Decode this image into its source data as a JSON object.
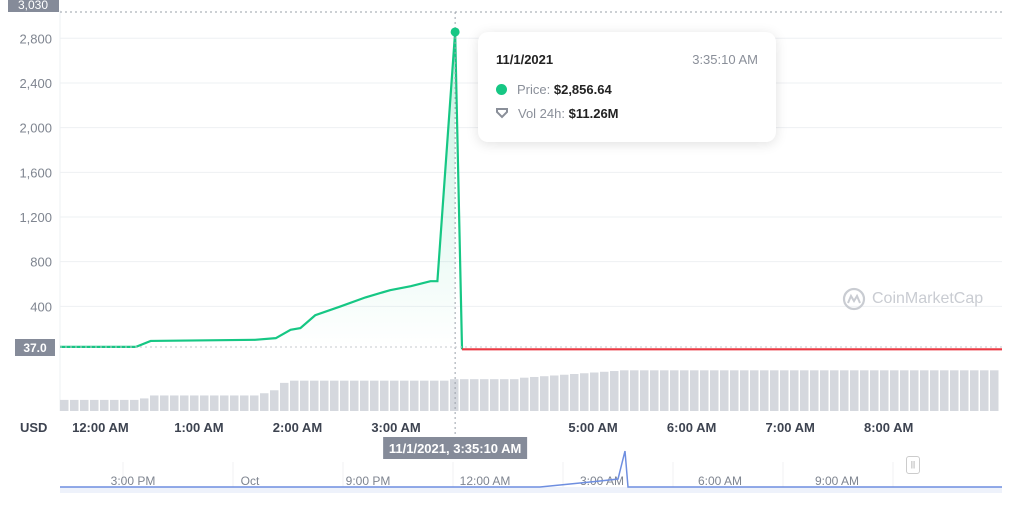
{
  "chart_data": {
    "type": "line",
    "currency_label": "USD",
    "y_ticks": [
      "2,800",
      "2,400",
      "2,000",
      "1,600",
      "1,200",
      "800",
      "400"
    ],
    "y_tick_values": [
      2800,
      2400,
      2000,
      1600,
      1200,
      800,
      400
    ],
    "ylim": [
      0,
      3030
    ],
    "top_label": "3,030",
    "current_label": "37.0",
    "x_ticks": [
      {
        "label": "12:00 AM",
        "h": 0
      },
      {
        "label": "1:00 AM",
        "h": 1
      },
      {
        "label": "2:00 AM",
        "h": 2
      },
      {
        "label": "3:00 AM",
        "h": 3
      },
      {
        "label": "5:00 AM",
        "h": 5
      },
      {
        "label": "6:00 AM",
        "h": 6
      },
      {
        "label": "7:00 AM",
        "h": 7
      },
      {
        "label": "8:00 AM",
        "h": 8
      }
    ],
    "xlim_hours": [
      -0.41,
      9.15
    ],
    "price_before": [
      [
        -0.41,
        37
      ],
      [
        0.36,
        37
      ],
      [
        0.51,
        90
      ],
      [
        1.57,
        100
      ],
      [
        1.78,
        115
      ],
      [
        1.93,
        190
      ],
      [
        2.03,
        205
      ],
      [
        2.18,
        320
      ],
      [
        2.44,
        400
      ],
      [
        2.69,
        480
      ],
      [
        2.94,
        545
      ],
      [
        3.15,
        580
      ],
      [
        3.35,
        625
      ],
      [
        3.42,
        625
      ],
      [
        3.6,
        2856.64
      ]
    ],
    "price_after": [
      [
        3.6,
        2856.64
      ],
      [
        3.67,
        15
      ],
      [
        9.15,
        15
      ]
    ],
    "volume_relative": [
      15,
      15,
      15,
      15,
      15,
      15,
      15,
      15,
      17,
      21,
      21,
      21,
      21,
      21,
      21,
      21,
      21,
      21,
      21,
      21,
      24,
      28,
      38,
      41,
      41,
      41,
      41,
      41,
      41,
      41,
      41,
      41,
      41,
      41,
      41,
      41,
      41,
      41,
      41,
      43,
      43,
      43,
      43,
      43,
      43,
      43,
      45,
      46,
      47,
      48,
      49,
      50,
      51,
      52,
      53,
      54,
      55,
      55,
      55,
      55,
      55,
      55,
      55,
      55,
      55,
      55,
      55,
      55,
      55,
      55,
      55,
      55,
      55,
      55,
      55,
      55,
      55,
      55,
      55,
      55,
      55,
      55,
      55,
      55,
      55,
      55,
      55,
      55,
      55,
      55,
      55,
      55,
      55,
      55
    ],
    "crosshair_label": "11/1/2021, 3:35:10 AM",
    "crosshair_hour": 3.6,
    "navigator": {
      "ticks": [
        "3:00 PM",
        "Oct",
        "9:00 PM",
        "12:00 AM",
        "3:00 AM",
        "6:00 AM",
        "9:00 AM"
      ]
    },
    "colors": {
      "up": "#16c784",
      "down": "#ea3943",
      "volume": "#d5d8de",
      "navigator": "#6e8ee0"
    }
  },
  "tooltip": {
    "date": "11/1/2021",
    "time": "3:35:10 AM",
    "price_label": "Price:",
    "price_value": "$2,856.64",
    "vol_label": "Vol 24h:",
    "vol_value": "$11.26M"
  },
  "watermark": "CoinMarketCap"
}
